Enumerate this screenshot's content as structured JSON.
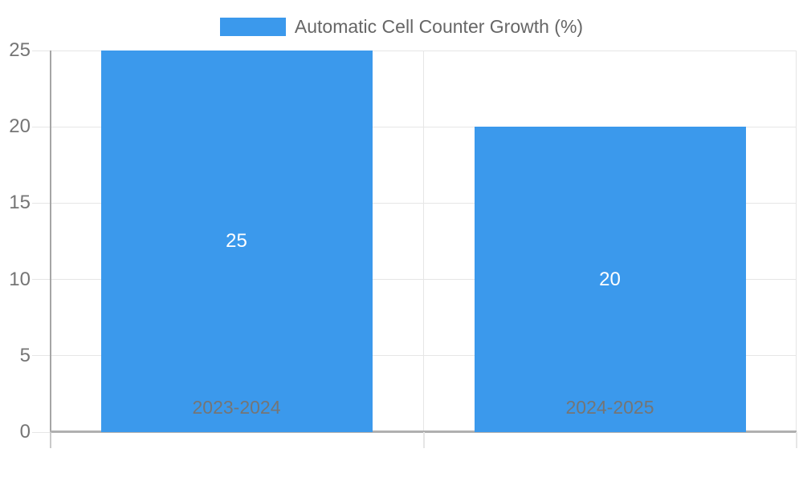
{
  "chart_data": {
    "type": "bar",
    "title": "Automatic Cell Counter Growth (%)",
    "categories": [
      "2023-2024",
      "2024-2025"
    ],
    "values": [
      25,
      20
    ],
    "value_labels": [
      "25",
      "20"
    ],
    "xlabel": "",
    "ylabel": "",
    "ylim": [
      0,
      25
    ],
    "yticks": [
      0,
      5,
      10,
      15,
      20,
      25
    ],
    "grid": true,
    "legend_position": "top-center",
    "colors": {
      "bar": "#3b99ec",
      "gridline": "#e6e6e6",
      "axis_line": "#a6a6a6",
      "baseline": "#b0b0b0",
      "tick_below_axis": "#c9c9c9",
      "tick_text": "#757575",
      "legend_text": "#666666",
      "value_label_text": "#ffffff",
      "background": "#ffffff"
    }
  }
}
